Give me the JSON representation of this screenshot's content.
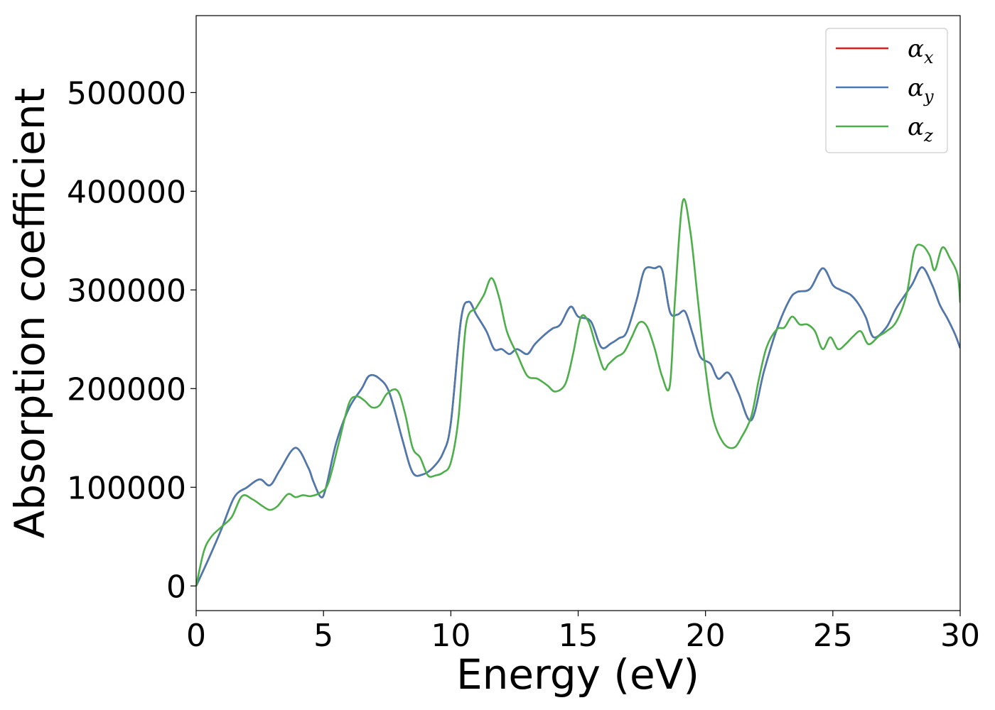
{
  "chart_data": {
    "type": "line",
    "title": "",
    "xlabel": "Energy (eV)",
    "ylabel": "Absorption coefficient",
    "xlim": [
      0,
      30
    ],
    "ylim": [
      -25000,
      578000
    ],
    "xticks": [
      0,
      5,
      10,
      15,
      20,
      25,
      30
    ],
    "yticks": [
      0,
      100000,
      200000,
      300000,
      400000,
      500000
    ],
    "grid": false,
    "legend_position": "top-right",
    "series": [
      {
        "name": "α_x",
        "legend_base": "α",
        "legend_sub": "x",
        "color": "#e41a1c",
        "x": [
          0,
          0.5,
          1,
          1.5,
          2,
          2.5,
          2.9,
          3.3,
          3.9,
          4.4,
          4.6,
          4.9,
          5.1,
          5.5,
          6.0,
          6.5,
          6.8,
          7.2,
          7.6,
          8.1,
          8.5,
          8.9,
          9.3,
          9.7,
          10.0,
          10.4,
          10.7,
          11.0,
          11.4,
          11.7,
          12.0,
          12.3,
          12.6,
          13.0,
          13.3,
          13.7,
          14.0,
          14.3,
          14.7,
          15.0,
          15.5,
          15.9,
          16.3,
          16.6,
          16.9,
          17.3,
          17.6,
          18.0,
          18.3,
          18.6,
          18.9,
          19.2,
          19.5,
          19.8,
          20.2,
          20.5,
          20.9,
          21.3,
          21.8,
          22.3,
          22.8,
          23.3,
          23.6,
          24.1,
          24.6,
          25.0,
          25.3,
          25.7,
          26.0,
          26.3,
          26.6,
          27.1,
          27.5,
          28.1,
          28.5,
          28.9,
          29.2,
          29.5,
          29.8,
          30.0
        ],
        "y": [
          0,
          28000,
          58000,
          90000,
          100000,
          108000,
          102000,
          118000,
          140000,
          120000,
          106000,
          90000,
          100000,
          145000,
          180000,
          200000,
          213000,
          210000,
          195000,
          148000,
          115000,
          113000,
          120000,
          135000,
          165000,
          270000,
          288000,
          275000,
          258000,
          240000,
          240000,
          235000,
          240000,
          235000,
          245000,
          255000,
          261000,
          265000,
          283000,
          273000,
          268000,
          242000,
          246000,
          251000,
          257000,
          290000,
          320000,
          322000,
          320000,
          278000,
          275000,
          278000,
          255000,
          232000,
          225000,
          210000,
          216000,
          195000,
          168000,
          218000,
          260000,
          290000,
          298000,
          301000,
          322000,
          305000,
          300000,
          295000,
          286000,
          272000,
          252000,
          262000,
          282000,
          305000,
          323000,
          305000,
          285000,
          271000,
          255000,
          241000
        ]
      },
      {
        "name": "α_y",
        "legend_base": "α",
        "legend_sub": "y",
        "color": "#4a7bb0",
        "x": [
          0,
          0.5,
          1,
          1.5,
          2,
          2.5,
          2.9,
          3.3,
          3.9,
          4.4,
          4.6,
          4.9,
          5.1,
          5.5,
          6.0,
          6.5,
          6.8,
          7.2,
          7.6,
          8.1,
          8.5,
          8.9,
          9.3,
          9.7,
          10.0,
          10.4,
          10.7,
          11.0,
          11.4,
          11.7,
          12.0,
          12.3,
          12.6,
          13.0,
          13.3,
          13.7,
          14.0,
          14.3,
          14.7,
          15.0,
          15.5,
          15.9,
          16.3,
          16.6,
          16.9,
          17.3,
          17.6,
          18.0,
          18.3,
          18.6,
          18.9,
          19.2,
          19.5,
          19.8,
          20.2,
          20.5,
          20.9,
          21.3,
          21.8,
          22.3,
          22.8,
          23.3,
          23.6,
          24.1,
          24.6,
          25.0,
          25.3,
          25.7,
          26.0,
          26.3,
          26.6,
          27.1,
          27.5,
          28.1,
          28.5,
          28.9,
          29.2,
          29.5,
          29.8,
          30.0
        ],
        "y": [
          0,
          28000,
          58000,
          90000,
          100000,
          108000,
          102000,
          118000,
          140000,
          120000,
          106000,
          90000,
          100000,
          145000,
          180000,
          200000,
          213000,
          210000,
          195000,
          148000,
          115000,
          113000,
          120000,
          135000,
          165000,
          270000,
          288000,
          275000,
          258000,
          240000,
          240000,
          235000,
          240000,
          235000,
          245000,
          255000,
          261000,
          265000,
          283000,
          273000,
          268000,
          242000,
          246000,
          251000,
          257000,
          290000,
          320000,
          322000,
          320000,
          278000,
          275000,
          278000,
          255000,
          232000,
          225000,
          210000,
          216000,
          195000,
          168000,
          218000,
          260000,
          290000,
          298000,
          301000,
          322000,
          305000,
          300000,
          295000,
          286000,
          272000,
          252000,
          262000,
          282000,
          305000,
          323000,
          305000,
          285000,
          271000,
          255000,
          241000
        ]
      },
      {
        "name": "α_z",
        "legend_base": "α",
        "legend_sub": "z",
        "color": "#4daf4a",
        "x": [
          0,
          0.3,
          0.6,
          1.0,
          1.4,
          1.8,
          2.2,
          2.6,
          2.9,
          3.2,
          3.6,
          3.9,
          4.2,
          4.5,
          4.9,
          5.2,
          5.6,
          6.0,
          6.3,
          6.6,
          6.9,
          7.2,
          7.5,
          7.9,
          8.2,
          8.5,
          8.8,
          9.1,
          9.4,
          9.7,
          10.0,
          10.3,
          10.6,
          11.0,
          11.3,
          11.6,
          11.9,
          12.2,
          12.6,
          13.0,
          13.4,
          13.8,
          14.1,
          14.5,
          14.8,
          15.1,
          15.4,
          15.7,
          16.0,
          16.2,
          16.5,
          16.8,
          17.1,
          17.4,
          17.7,
          18.0,
          18.3,
          18.6,
          18.8,
          19.1,
          19.4,
          19.7,
          20.0,
          20.3,
          20.7,
          21.1,
          21.4,
          21.8,
          22.1,
          22.4,
          22.8,
          23.1,
          23.4,
          23.7,
          24.0,
          24.3,
          24.6,
          24.9,
          25.2,
          25.5,
          25.8,
          26.1,
          26.4,
          26.8,
          27.1,
          27.5,
          27.9,
          28.2,
          28.5,
          28.8,
          29.0,
          29.3,
          29.6,
          29.9,
          30.0
        ],
        "y": [
          0,
          35000,
          50000,
          60000,
          70000,
          91000,
          88000,
          81000,
          77000,
          81000,
          93000,
          90000,
          92000,
          91000,
          95000,
          105000,
          145000,
          185000,
          192000,
          188000,
          181000,
          183000,
          195000,
          198000,
          175000,
          140000,
          130000,
          112000,
          112000,
          115000,
          125000,
          170000,
          265000,
          282000,
          295000,
          312000,
          292000,
          258000,
          235000,
          213000,
          210000,
          203000,
          197000,
          205000,
          235000,
          272000,
          268000,
          243000,
          220000,
          225000,
          232000,
          237000,
          252000,
          267000,
          263000,
          241000,
          212000,
          203000,
          290000,
          389000,
          360000,
          290000,
          220000,
          170000,
          145000,
          140000,
          150000,
          172000,
          210000,
          242000,
          260000,
          262000,
          273000,
          265000,
          265000,
          258000,
          240000,
          252000,
          240000,
          245000,
          253000,
          258000,
          245000,
          253000,
          258000,
          268000,
          296000,
          340000,
          345000,
          335000,
          320000,
          343000,
          332000,
          315000,
          287000
        ]
      }
    ]
  }
}
